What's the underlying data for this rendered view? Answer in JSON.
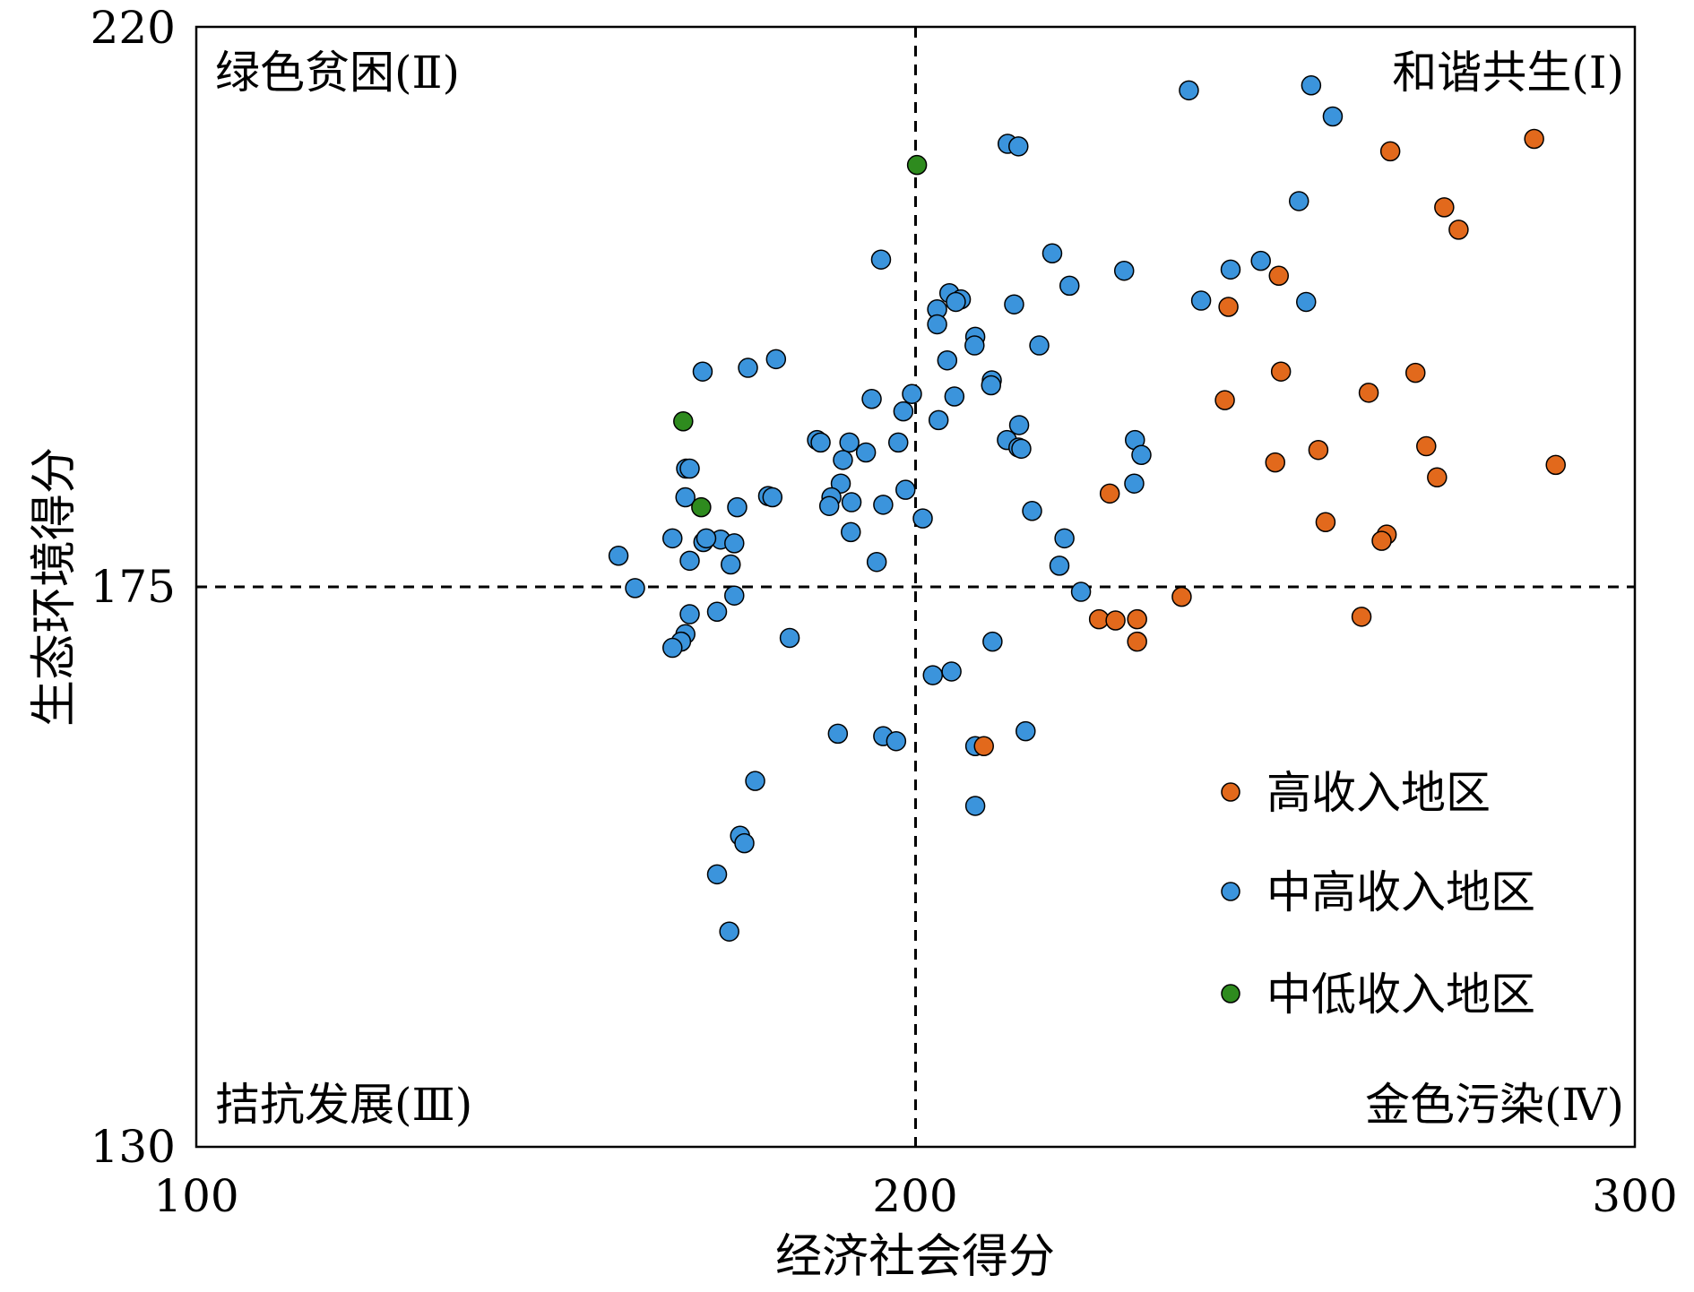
{
  "chart_data": {
    "type": "scatter",
    "xlabel": "经济社会得分",
    "ylabel": "生态环境得分",
    "xlim": [
      100,
      300
    ],
    "ylim": [
      130,
      220
    ],
    "x_ticks": [
      "100",
      "200",
      "300"
    ],
    "y_ticks": [
      "130",
      "175",
      "220"
    ],
    "reference_lines": {
      "x": 200,
      "y": 175,
      "style": "dashed"
    },
    "grid": false,
    "legend_position": "bottom-right",
    "quadrant_labels": {
      "top_left": "绿色贫困(Ⅱ)",
      "top_right": "和谐共生(Ⅰ)",
      "bottom_left": "拮抗发展(Ⅲ)",
      "bottom_right": "金色污染(Ⅳ)"
    },
    "series": [
      {
        "name": "高收入地区",
        "color": "#E2691C",
        "points": [
          [
            286,
            211
          ],
          [
            266,
            210
          ],
          [
            273.5,
            205.5
          ],
          [
            275.5,
            203.7
          ],
          [
            250.5,
            200
          ],
          [
            243.5,
            197.5
          ],
          [
            250.8,
            192.3
          ],
          [
            269.5,
            192.2
          ],
          [
            263,
            190.6
          ],
          [
            243,
            190
          ],
          [
            271,
            186.3
          ],
          [
            256,
            186
          ],
          [
            250,
            185
          ],
          [
            289,
            184.8
          ],
          [
            272.5,
            183.8
          ],
          [
            227,
            182.5
          ],
          [
            257,
            180.2
          ],
          [
            265.5,
            179.2
          ],
          [
            264.8,
            178.7
          ],
          [
            237,
            174.2
          ],
          [
            262,
            172.6
          ],
          [
            225.5,
            172.4
          ],
          [
            227.8,
            172.3
          ],
          [
            230.8,
            172.4
          ],
          [
            230.8,
            170.6
          ],
          [
            209.5,
            162.2
          ]
        ]
      },
      {
        "name": "中高收入地区",
        "color": "#3B94DC",
        "points": [
          [
            238,
            214.9
          ],
          [
            255,
            215.3
          ],
          [
            258,
            212.8
          ],
          [
            212.8,
            210.6
          ],
          [
            214.3,
            210.4
          ],
          [
            253.3,
            206
          ],
          [
            219,
            201.8
          ],
          [
            195.2,
            201.3
          ],
          [
            248,
            201.2
          ],
          [
            243.8,
            200.5
          ],
          [
            229,
            200.4
          ],
          [
            221.4,
            199.2
          ],
          [
            204.7,
            198.6
          ],
          [
            206.3,
            198.1
          ],
          [
            239.7,
            198
          ],
          [
            254.3,
            197.9
          ],
          [
            205.6,
            197.9
          ],
          [
            213.7,
            197.7
          ],
          [
            203,
            197.3
          ],
          [
            203,
            196.1
          ],
          [
            208.3,
            195.1
          ],
          [
            208.2,
            194.4
          ],
          [
            217.2,
            194.4
          ],
          [
            204.4,
            193.2
          ],
          [
            180.6,
            193.3
          ],
          [
            176.7,
            192.6
          ],
          [
            170.4,
            192.3
          ],
          [
            210.6,
            191.6
          ],
          [
            210.5,
            191.2
          ],
          [
            199.5,
            190.5
          ],
          [
            205.4,
            190.3
          ],
          [
            193.9,
            190.1
          ],
          [
            198.3,
            189.1
          ],
          [
            203.2,
            188.4
          ],
          [
            214.4,
            188
          ],
          [
            212.7,
            186.8
          ],
          [
            230.5,
            186.8
          ],
          [
            186.3,
            186.8
          ],
          [
            186.8,
            186.6
          ],
          [
            190.8,
            186.6
          ],
          [
            197.6,
            186.6
          ],
          [
            214.3,
            186.2
          ],
          [
            214.7,
            186.1
          ],
          [
            231.4,
            185.6
          ],
          [
            193.1,
            185.8
          ],
          [
            189.9,
            185.2
          ],
          [
            168.1,
            184.5
          ],
          [
            168.6,
            184.5
          ],
          [
            189.6,
            183.3
          ],
          [
            230.4,
            183.3
          ],
          [
            198.6,
            182.8
          ],
          [
            168,
            182.2
          ],
          [
            179.5,
            182.3
          ],
          [
            180.1,
            182.2
          ],
          [
            188.3,
            182.2
          ],
          [
            191.1,
            181.8
          ],
          [
            195.5,
            181.6
          ],
          [
            188,
            181.5
          ],
          [
            175.2,
            181.4
          ],
          [
            216.2,
            181.1
          ],
          [
            201,
            180.5
          ],
          [
            191,
            179.4
          ],
          [
            220.7,
            178.9
          ],
          [
            172.9,
            178.8
          ],
          [
            166.2,
            178.9
          ],
          [
            170.5,
            178.6
          ],
          [
            170.9,
            178.9
          ],
          [
            174.8,
            178.5
          ],
          [
            158.7,
            177.5
          ],
          [
            168.6,
            177.1
          ],
          [
            194.6,
            177
          ],
          [
            174.3,
            176.8
          ],
          [
            220,
            176.7
          ],
          [
            161,
            174.9
          ],
          [
            223,
            174.6
          ],
          [
            174.8,
            174.3
          ],
          [
            172.4,
            173
          ],
          [
            168.6,
            172.8
          ],
          [
            168,
            171.2
          ],
          [
            167.4,
            170.6
          ],
          [
            166.2,
            170.1
          ],
          [
            182.5,
            170.9
          ],
          [
            210.7,
            170.6
          ],
          [
            205,
            168.2
          ],
          [
            202.4,
            167.9
          ],
          [
            189.2,
            163.2
          ],
          [
            195.5,
            163
          ],
          [
            197.3,
            162.6
          ],
          [
            215.3,
            163.4
          ],
          [
            208.3,
            162.2
          ],
          [
            177.7,
            159.4
          ],
          [
            208.3,
            157.4
          ],
          [
            175.6,
            155
          ],
          [
            176.2,
            154.4
          ],
          [
            172.4,
            151.9
          ],
          [
            174.1,
            147.3
          ]
        ]
      },
      {
        "name": "中低收入地区",
        "color": "#2E8B1E",
        "points": [
          [
            200.2,
            208.9
          ],
          [
            167.7,
            188.3
          ],
          [
            170.2,
            181.4
          ]
        ]
      }
    ]
  }
}
